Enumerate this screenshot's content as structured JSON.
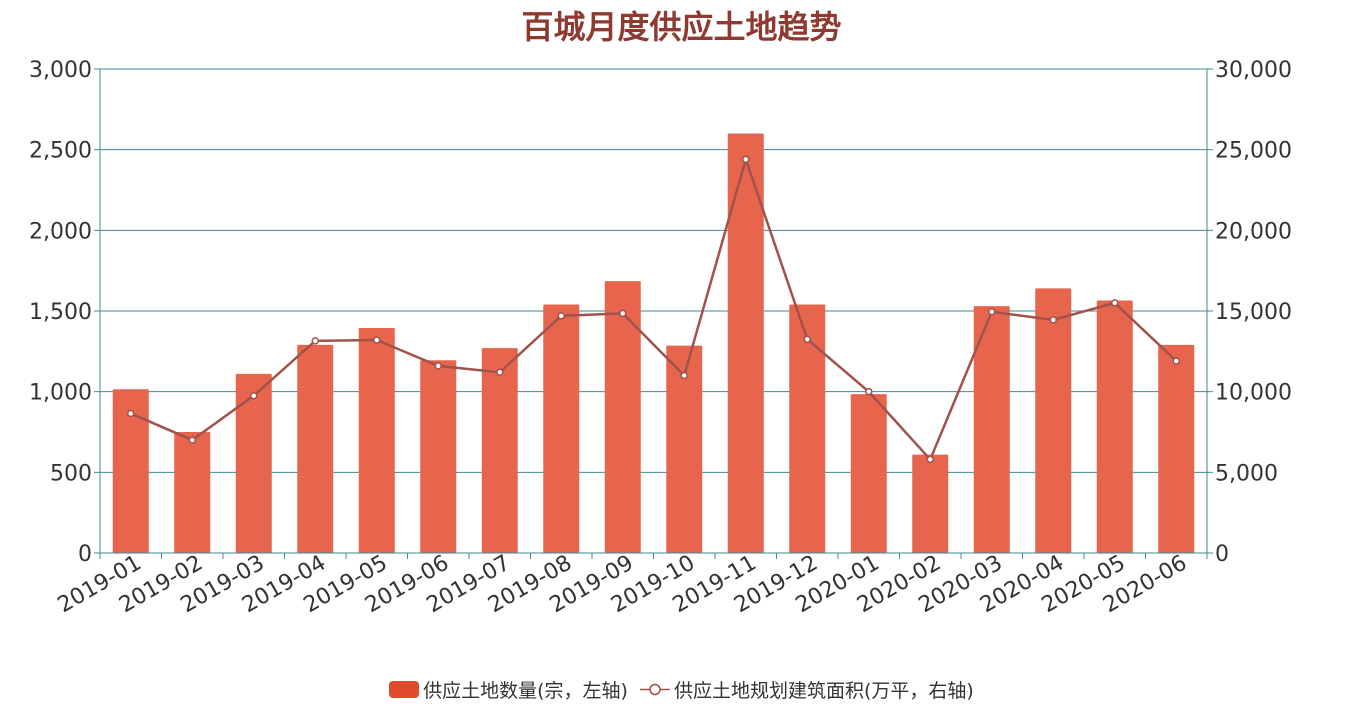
{
  "chart_data": {
    "type": "bar",
    "title": "百城月度供应土地趋势",
    "categories": [
      "2019-01",
      "2019-02",
      "2019-03",
      "2019-04",
      "2019-05",
      "2019-06",
      "2019-07",
      "2019-08",
      "2019-09",
      "2019-10",
      "2019-11",
      "2019-12",
      "2020-01",
      "2020-02",
      "2020-03",
      "2020-04",
      "2020-05",
      "2020-06"
    ],
    "series": [
      {
        "name": "供应土地数量(宗，左轴)",
        "type": "bar",
        "axis": "left",
        "color": "#e8654d",
        "values": [
          1015,
          750,
          1110,
          1290,
          1395,
          1195,
          1270,
          1540,
          1685,
          1285,
          2600,
          1540,
          985,
          610,
          1530,
          1640,
          1565,
          1290
        ]
      },
      {
        "name": "供应土地规划建筑面积(万平，右轴)",
        "type": "line",
        "axis": "right",
        "color": "#a0524b",
        "values": [
          8650,
          7000,
          9750,
          13150,
          13200,
          11600,
          11200,
          14700,
          14850,
          11000,
          24400,
          13250,
          10000,
          5800,
          14950,
          14450,
          15500,
          11900
        ]
      }
    ],
    "yaxis_left": {
      "min": 0,
      "max": 3000,
      "ticks": [
        "0",
        "500",
        "1,000",
        "1,500",
        "2,000",
        "2,500",
        "3,000"
      ]
    },
    "yaxis_right": {
      "min": 0,
      "max": 30000,
      "ticks": [
        "0",
        "5,000",
        "10,000",
        "15,000",
        "20,000",
        "25,000",
        "30,000"
      ]
    },
    "grid": true,
    "legend_position": "bottom-center"
  }
}
